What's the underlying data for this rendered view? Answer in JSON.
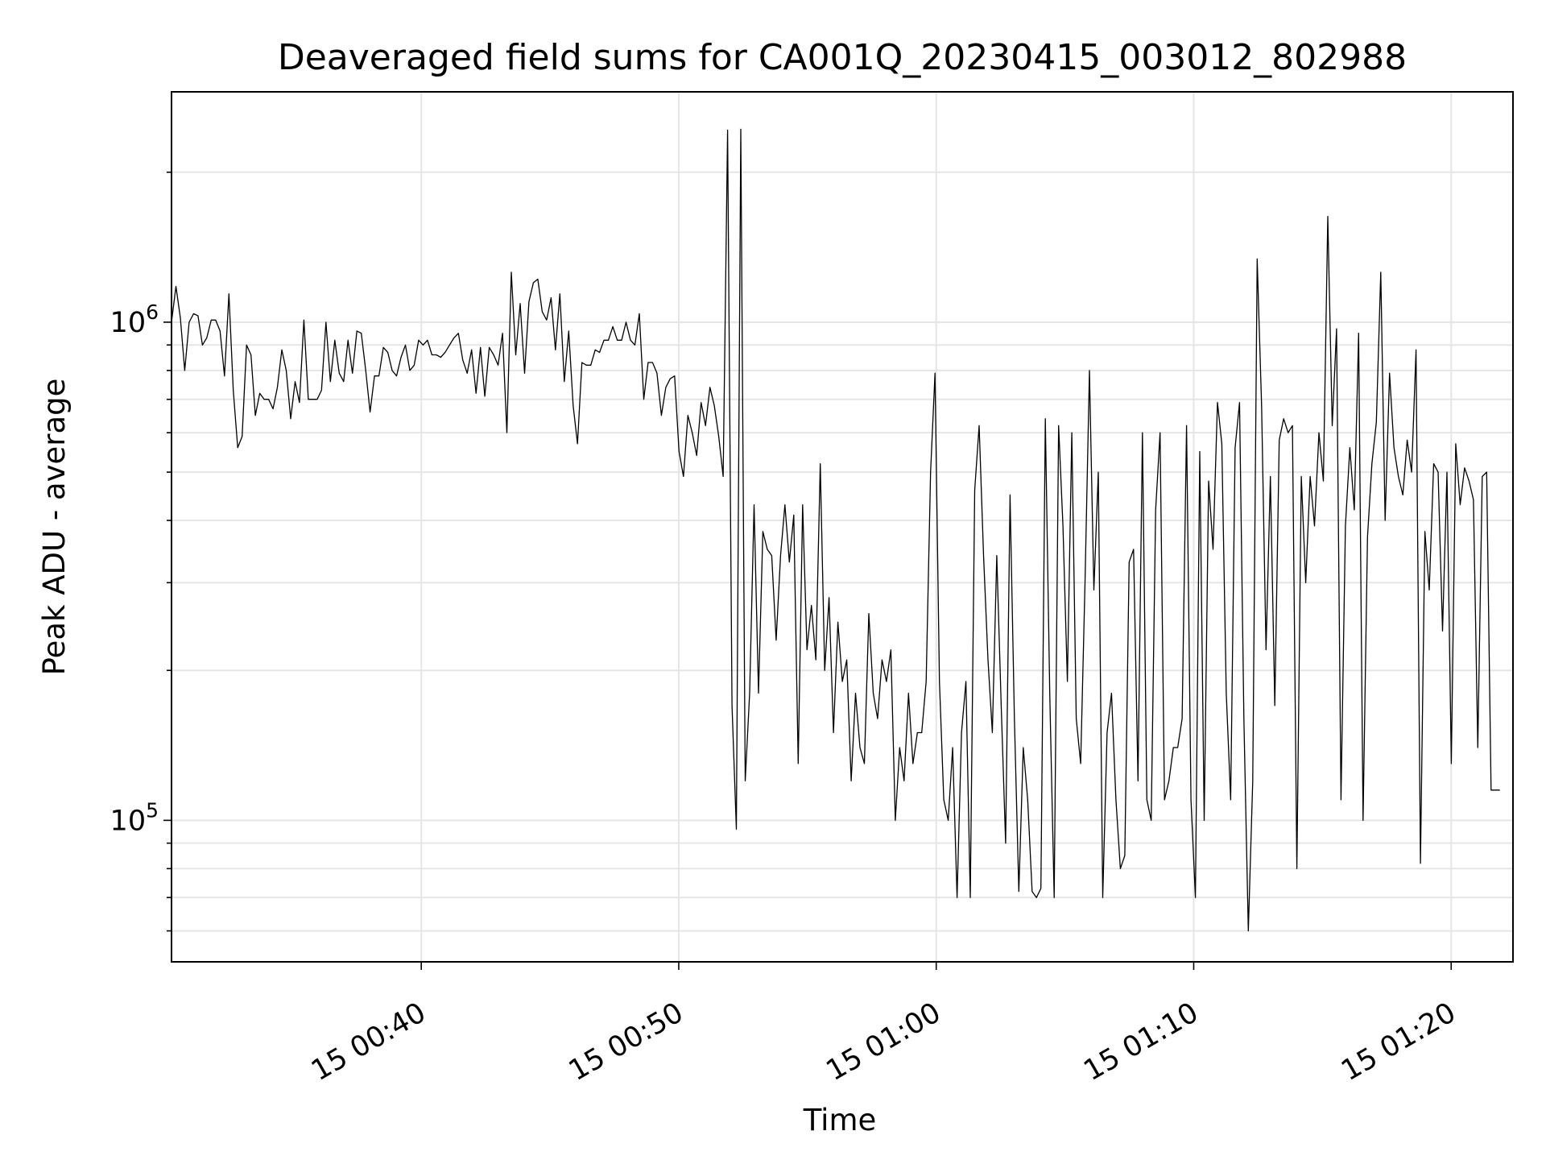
{
  "chart_data": {
    "type": "line",
    "title": "Deaveraged field sums for CA001Q_20230415_003012_802988",
    "xlabel": "Time",
    "ylabel": "Peak ADU - average",
    "yscale": "log",
    "ylim": [
      52000,
      2900000
    ],
    "x_units": "minutes after 15 00:00",
    "xlim": [
      30.3,
      82.4
    ],
    "grid": true,
    "line_color": "#000000",
    "grid_color": "#e5e5e5",
    "x_ticks": [
      {
        "value": 40,
        "label": "15 00:40"
      },
      {
        "value": 50,
        "label": "15 00:50"
      },
      {
        "value": 60,
        "label": "15 01:00"
      },
      {
        "value": 70,
        "label": "15 01:10"
      },
      {
        "value": 80,
        "label": "15 01:20"
      }
    ],
    "y_ticks": [
      {
        "value": 100000,
        "base": "10",
        "exp": "5"
      },
      {
        "value": 1000000,
        "base": "10",
        "exp": "6"
      }
    ],
    "series": [
      {
        "x_start": 30.3,
        "x_step": 0.1714,
        "values": [
          1000000,
          1180000,
          1020000,
          800000,
          1000000,
          1040000,
          1030000,
          900000,
          930000,
          1010000,
          1010000,
          960000,
          780000,
          1140000,
          730000,
          560000,
          590000,
          900000,
          860000,
          650000,
          720000,
          700000,
          700000,
          670000,
          740000,
          880000,
          800000,
          640000,
          760000,
          690000,
          1010000,
          700000,
          700000,
          700000,
          730000,
          1000000,
          760000,
          920000,
          790000,
          760000,
          920000,
          790000,
          960000,
          950000,
          800000,
          660000,
          780000,
          780000,
          890000,
          870000,
          800000,
          780000,
          850000,
          900000,
          800000,
          820000,
          920000,
          900000,
          920000,
          860000,
          860000,
          850000,
          870000,
          900000,
          930000,
          950000,
          840000,
          790000,
          880000,
          720000,
          890000,
          710000,
          890000,
          860000,
          820000,
          950000,
          600000,
          1260000,
          860000,
          1090000,
          790000,
          1100000,
          1200000,
          1220000,
          1050000,
          1010000,
          1120000,
          880000,
          1140000,
          760000,
          960000,
          680000,
          570000,
          830000,
          820000,
          820000,
          880000,
          870000,
          920000,
          920000,
          980000,
          920000,
          920000,
          1000000,
          920000,
          900000,
          1040000,
          700000,
          830000,
          830000,
          790000,
          650000,
          740000,
          770000,
          780000,
          550000,
          490000,
          650000,
          600000,
          540000,
          690000,
          620000,
          740000,
          680000,
          590000,
          490000,
          2430000,
          170000,
          96000,
          2440000,
          120000,
          180000,
          430000,
          180000,
          380000,
          350000,
          340000,
          230000,
          340000,
          430000,
          330000,
          410000,
          130000,
          430000,
          220000,
          270000,
          210000,
          520000,
          200000,
          280000,
          150000,
          250000,
          190000,
          210000,
          120000,
          180000,
          140000,
          130000,
          260000,
          180000,
          160000,
          210000,
          190000,
          220000,
          100000,
          140000,
          120000,
          180000,
          130000,
          150000,
          150000,
          190000,
          500000,
          790000,
          190000,
          110000,
          100000,
          140000,
          70000,
          150000,
          190000,
          70000,
          460000,
          620000,
          340000,
          210000,
          150000,
          340000,
          170000,
          90000,
          450000,
          160000,
          72000,
          140000,
          110000,
          72000,
          70000,
          73000,
          640000,
          180000,
          70000,
          620000,
          390000,
          190000,
          600000,
          160000,
          130000,
          300000,
          800000,
          290000,
          500000,
          70000,
          150000,
          180000,
          110000,
          80000,
          85000,
          330000,
          350000,
          120000,
          600000,
          110000,
          100000,
          420000,
          600000,
          110000,
          120000,
          140000,
          140000,
          160000,
          620000,
          110000,
          70000,
          550000,
          100000,
          480000,
          350000,
          690000,
          570000,
          180000,
          110000,
          560000,
          690000,
          160000,
          60000,
          120000,
          1340000,
          680000,
          220000,
          490000,
          170000,
          580000,
          640000,
          600000,
          620000,
          80000,
          490000,
          300000,
          490000,
          390000,
          600000,
          480000,
          1630000,
          620000,
          970000,
          110000,
          390000,
          560000,
          420000,
          950000,
          100000,
          370000,
          520000,
          630000,
          1260000,
          400000,
          790000,
          560000,
          490000,
          450000,
          580000,
          500000,
          880000,
          82000,
          380000,
          290000,
          520000,
          500000,
          240000,
          500000,
          130000,
          570000,
          430000,
          510000,
          480000,
          440000,
          140000,
          490000,
          500000,
          115000,
          115000,
          115000
        ]
      }
    ]
  }
}
